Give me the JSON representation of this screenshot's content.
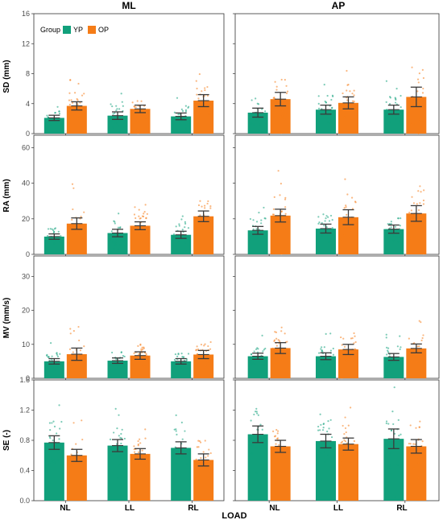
{
  "chart_data": {
    "type": "bar",
    "column_strips": [
      "ML",
      "AP"
    ],
    "x_title": "LOAD",
    "categories": [
      "NL",
      "LL",
      "RL"
    ],
    "legend": {
      "title": "Group",
      "entries": [
        "YP",
        "OP"
      ],
      "placement": "top-left"
    },
    "colors": {
      "YP": "#11a07b",
      "OP": "#f57c17",
      "error_bar": "#3a3a3a"
    },
    "error_bars": "mean ± 95% CI",
    "points": "individual participants (jittered)",
    "panels": [
      {
        "ylabel": "SD (mm)",
        "ylim": [
          0,
          16
        ],
        "yticks": [
          "0",
          "4",
          "8",
          "12",
          "16"
        ],
        "tick_values": [
          0,
          4,
          8,
          12,
          16
        ],
        "ML": {
          "YP": [
            2.1,
            2.4,
            2.3
          ],
          "OP": [
            3.7,
            3.3,
            4.4
          ],
          "YP_err": [
            0.35,
            0.5,
            0.45
          ],
          "OP_err": [
            0.55,
            0.5,
            0.8
          ]
        },
        "AP": {
          "YP": [
            2.8,
            3.2,
            3.2
          ],
          "OP": [
            4.6,
            4.1,
            4.9
          ],
          "YP_err": [
            0.6,
            0.6,
            0.6
          ],
          "OP_err": [
            0.9,
            0.8,
            1.3
          ]
        }
      },
      {
        "ylabel": "RA (mm)",
        "ylim": [
          0,
          67
        ],
        "yticks": [
          "0",
          "20",
          "40",
          "60"
        ],
        "tick_values": [
          0,
          20,
          40,
          60
        ],
        "ML": {
          "YP": [
            10,
            12,
            11
          ],
          "OP": [
            17.3,
            16.1,
            21.4
          ],
          "YP_err": [
            1.5,
            2.1,
            2.0
          ],
          "OP_err": [
            3.2,
            2.2,
            3.0
          ]
        },
        "AP": {
          "YP": [
            13.5,
            14.5,
            14.2
          ],
          "OP": [
            21.8,
            20.9,
            23.0
          ],
          "YP_err": [
            2.2,
            2.5,
            2.3
          ],
          "OP_err": [
            3.6,
            4.2,
            4.4
          ]
        }
      },
      {
        "ylabel": "MV (mm/s)",
        "ylim": [
          0,
          36
        ],
        "yticks": [
          "0",
          "10",
          "20",
          "30"
        ],
        "tick_values": [
          0,
          10,
          20,
          30
        ],
        "ML": {
          "YP": [
            5.0,
            5.2,
            5.0
          ],
          "OP": [
            7.1,
            6.7,
            7.0
          ],
          "YP_err": [
            0.8,
            0.8,
            0.8
          ],
          "OP_err": [
            1.8,
            1.1,
            1.2
          ]
        },
        "AP": {
          "YP": [
            6.5,
            6.5,
            6.3
          ],
          "OP": [
            8.9,
            8.5,
            8.8
          ],
          "YP_err": [
            0.9,
            1.0,
            1.0
          ],
          "OP_err": [
            1.6,
            1.5,
            1.3
          ]
        }
      },
      {
        "ylabel": "SE (-)",
        "ylim": [
          0,
          1.6
        ],
        "yticks": [
          "0.0",
          "0.4",
          "0.8",
          "1.2",
          "1.6"
        ],
        "tick_values": [
          0,
          0.4,
          0.8,
          1.2,
          1.6
        ],
        "ML": {
          "YP": [
            0.77,
            0.73,
            0.7
          ],
          "OP": [
            0.6,
            0.62,
            0.54
          ],
          "YP_err": [
            0.09,
            0.08,
            0.08
          ],
          "OP_err": [
            0.08,
            0.07,
            0.08
          ]
        },
        "AP": {
          "YP": [
            0.88,
            0.79,
            0.82
          ],
          "OP": [
            0.72,
            0.75,
            0.72
          ],
          "YP_err": [
            0.11,
            0.09,
            0.13
          ],
          "OP_err": [
            0.08,
            0.08,
            0.09
          ]
        }
      }
    ]
  }
}
